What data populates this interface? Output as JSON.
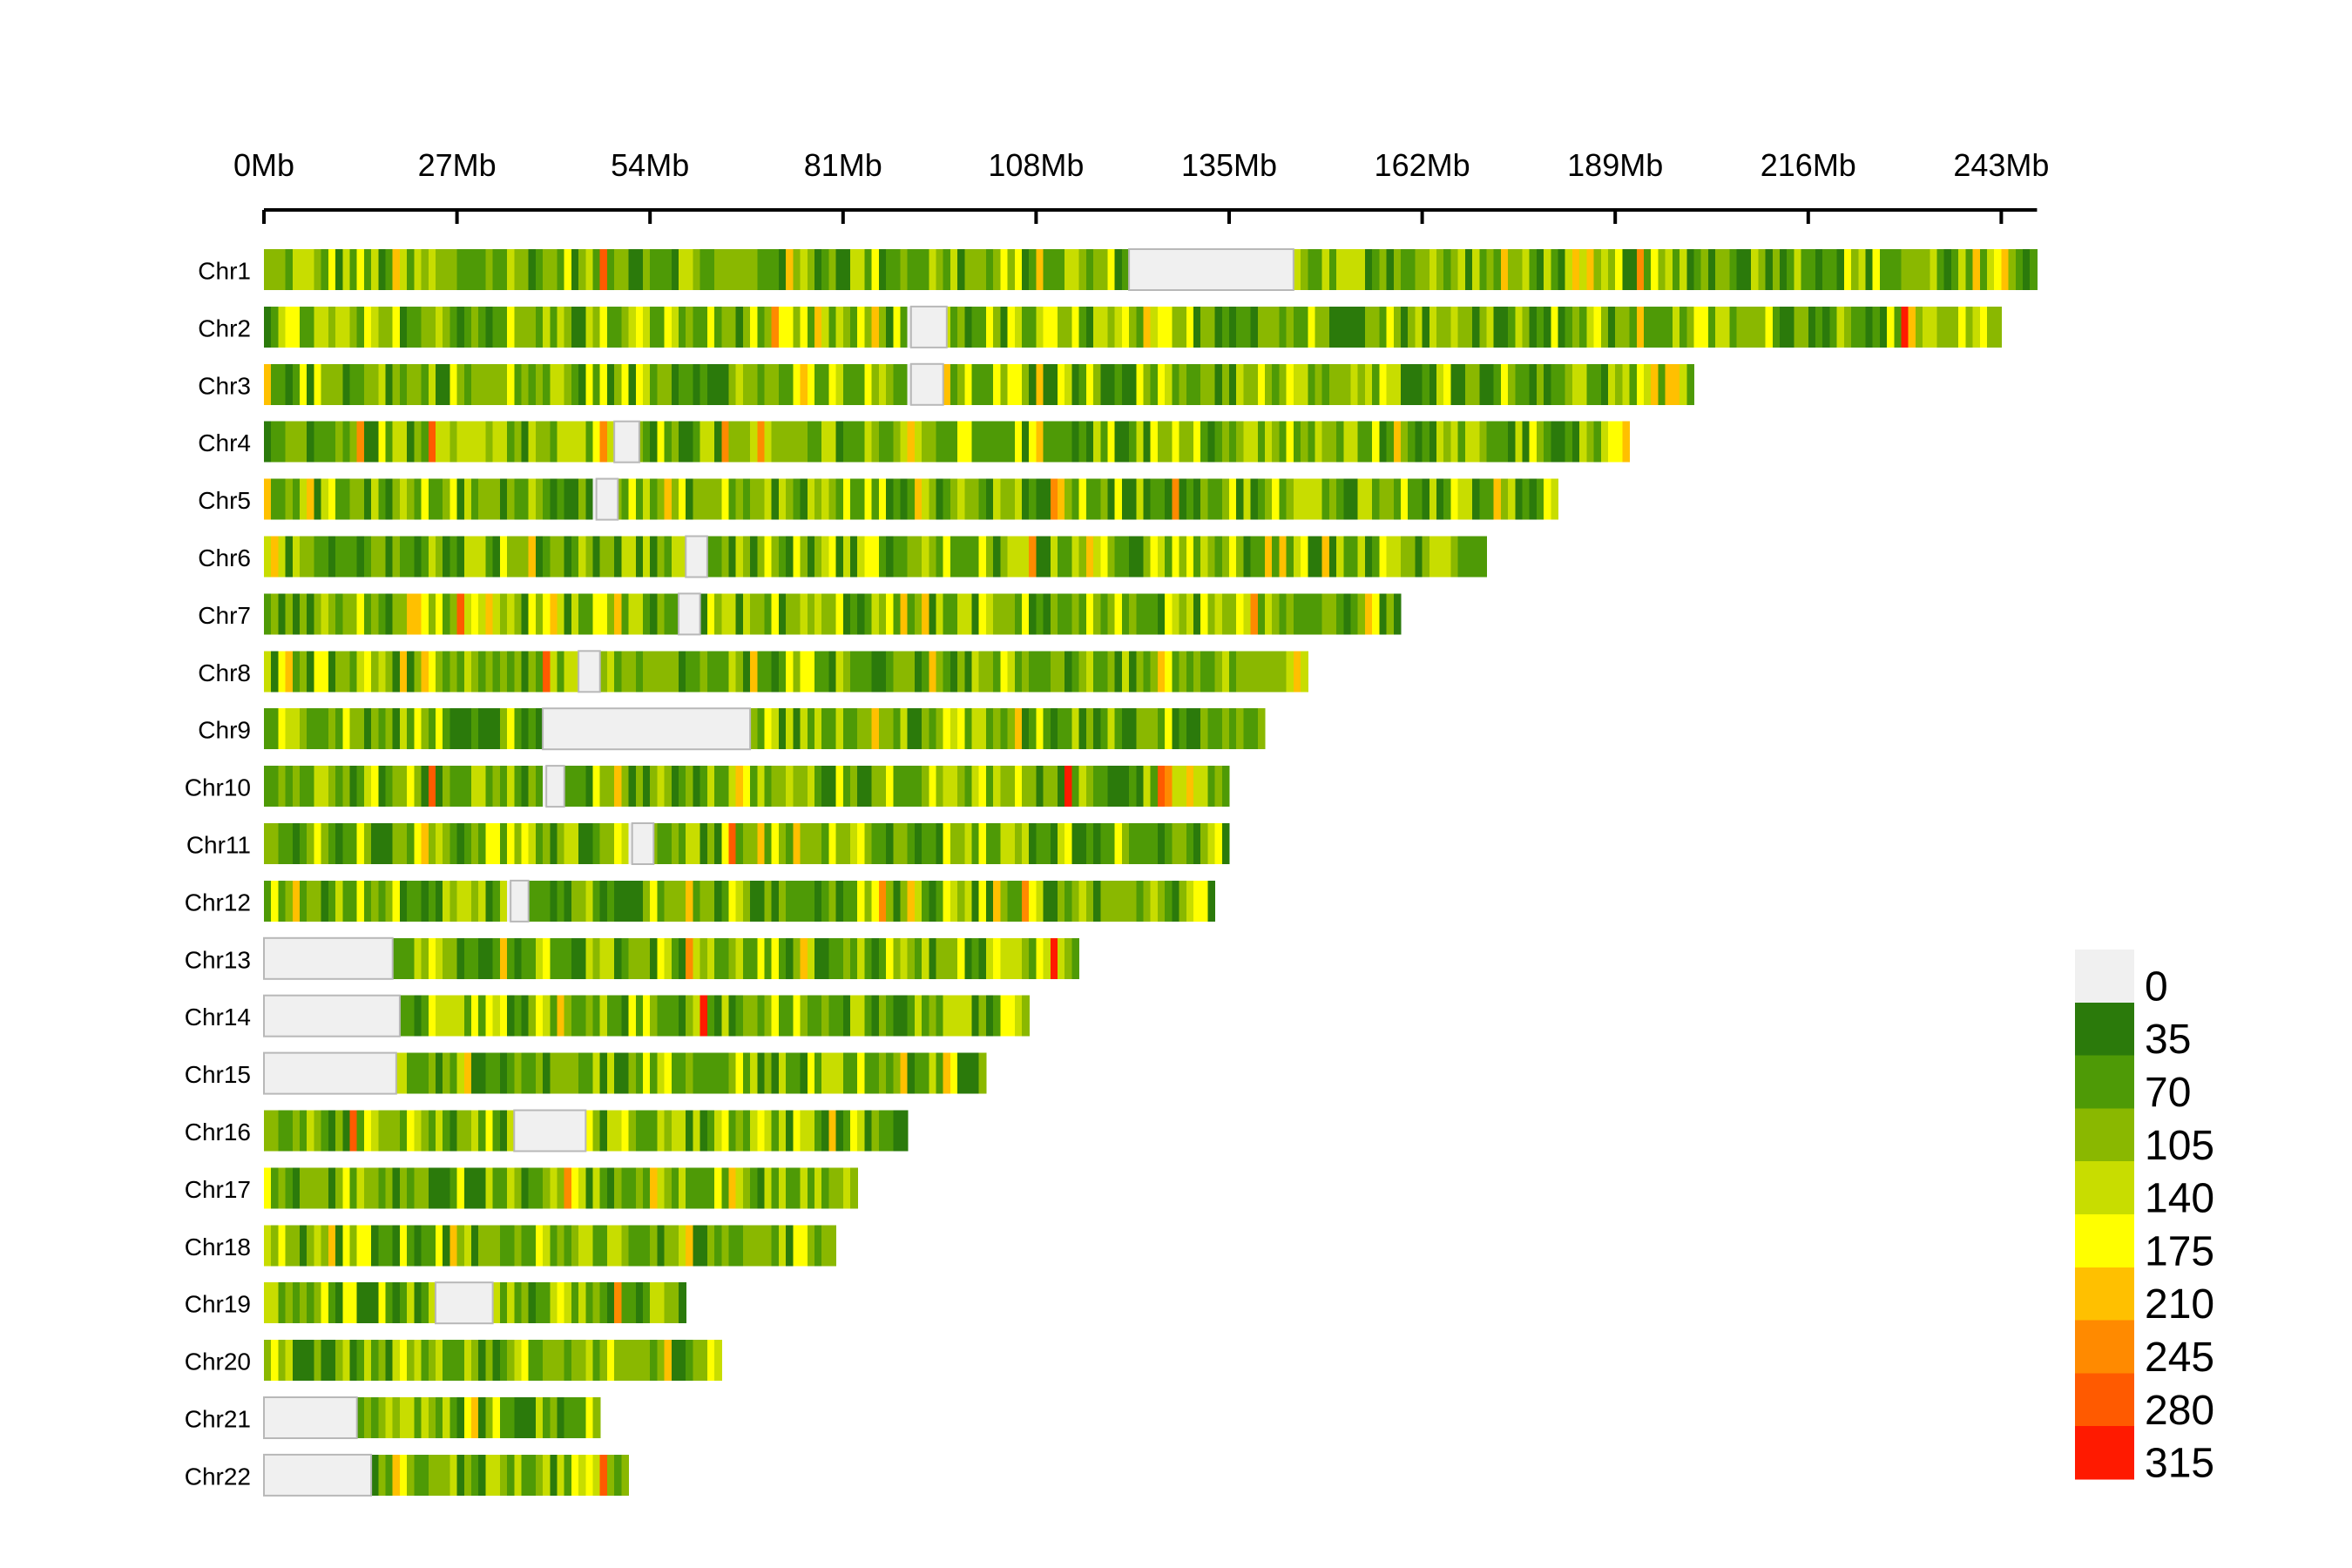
{
  "chart_data": {
    "type": "heatmap",
    "title": "",
    "xlabel": "",
    "ylabel": "",
    "x_unit": "Mb",
    "xlim": [
      0,
      243
    ],
    "x_ticks": [
      0,
      27,
      54,
      81,
      108,
      135,
      162,
      189,
      216,
      243
    ],
    "x_tick_labels": [
      "0Mb",
      "27Mb",
      "54Mb",
      "81Mb",
      "108Mb",
      "135Mb",
      "162Mb",
      "189Mb",
      "216Mb",
      "243Mb"
    ],
    "grid": false,
    "legend_position": "bottom-right",
    "colors": {
      "no_data": "#f0f0f0",
      "scale": [
        "#f0f0f0",
        "#2b7a0b",
        "#4e9a06",
        "#8ab800",
        "#c8dd00",
        "#ffff00",
        "#ffc000",
        "#ff8a00",
        "#ff5a00",
        "#ff1a00"
      ]
    },
    "legend": {
      "labels": [
        "0",
        "35",
        "70",
        "105",
        "140",
        "175",
        "210",
        "245",
        "280",
        "315"
      ],
      "values": [
        0,
        35,
        70,
        105,
        140,
        175,
        210,
        245,
        280,
        315
      ]
    },
    "chromosomes": [
      {
        "name": "Chr1",
        "length": 248,
        "gaps": [
          [
            121,
            144
          ]
        ]
      },
      {
        "name": "Chr2",
        "length": 243,
        "gaps": [
          [
            90.5,
            95.5
          ]
        ]
      },
      {
        "name": "Chr3",
        "length": 200,
        "gaps": [
          [
            90.5,
            95
          ]
        ]
      },
      {
        "name": "Chr4",
        "length": 191,
        "gaps": [
          [
            49,
            52.5
          ]
        ]
      },
      {
        "name": "Chr5",
        "length": 181,
        "gaps": [
          [
            46.5,
            49.5
          ]
        ]
      },
      {
        "name": "Chr6",
        "length": 171,
        "gaps": [
          [
            59,
            62
          ]
        ]
      },
      {
        "name": "Chr7",
        "length": 159,
        "gaps": [
          [
            58,
            61
          ]
        ]
      },
      {
        "name": "Chr8",
        "length": 146,
        "gaps": [
          [
            44,
            47
          ]
        ]
      },
      {
        "name": "Chr9",
        "length": 140,
        "gaps": [
          [
            39,
            68
          ]
        ]
      },
      {
        "name": "Chr10",
        "length": 135,
        "gaps": [
          [
            39.5,
            42
          ]
        ]
      },
      {
        "name": "Chr11",
        "length": 135,
        "gaps": [
          [
            51.5,
            54.5
          ]
        ]
      },
      {
        "name": "Chr12",
        "length": 133,
        "gaps": [
          [
            34.5,
            37
          ]
        ]
      },
      {
        "name": "Chr13",
        "length": 114,
        "gaps": [
          [
            0,
            18
          ]
        ]
      },
      {
        "name": "Chr14",
        "length": 107,
        "gaps": [
          [
            0,
            19
          ]
        ]
      },
      {
        "name": "Chr15",
        "length": 101,
        "gaps": [
          [
            0,
            18.5
          ]
        ]
      },
      {
        "name": "Chr16",
        "length": 90,
        "gaps": [
          [
            35,
            45
          ]
        ]
      },
      {
        "name": "Chr17",
        "length": 83,
        "gaps": []
      },
      {
        "name": "Chr18",
        "length": 80,
        "gaps": []
      },
      {
        "name": "Chr19",
        "length": 59,
        "gaps": [
          [
            24,
            32
          ]
        ]
      },
      {
        "name": "Chr20",
        "length": 64,
        "gaps": []
      },
      {
        "name": "Chr21",
        "length": 47,
        "gaps": [
          [
            0,
            13
          ]
        ]
      },
      {
        "name": "Chr22",
        "length": 51,
        "gaps": [
          [
            0,
            15
          ]
        ]
      }
    ]
  }
}
